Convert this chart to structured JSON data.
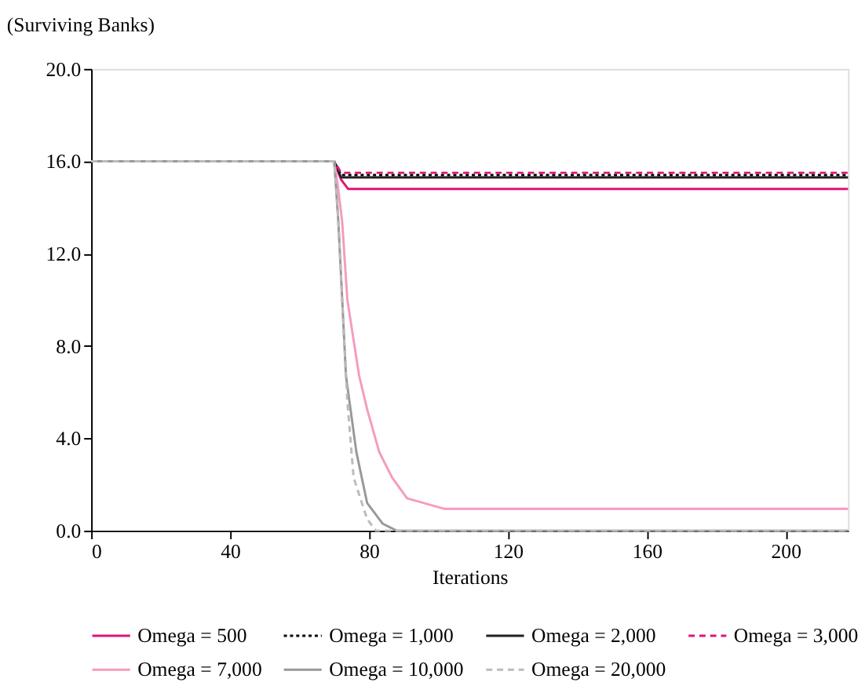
{
  "chart_data": {
    "type": "line",
    "ylabel": "(Surviving Banks)",
    "xlabel": "Iterations",
    "xlim": [
      0,
      218
    ],
    "ylim": [
      0,
      20
    ],
    "xticks": [
      0,
      40,
      80,
      120,
      160,
      200
    ],
    "yticks": [
      {
        "value": 0,
        "label": "0.0"
      },
      {
        "value": 4,
        "label": "4.0"
      },
      {
        "value": 8,
        "label": "8.0"
      },
      {
        "value": 12,
        "label": "12.0"
      },
      {
        "value": 16,
        "label": "16.0"
      },
      {
        "value": 20,
        "label": "20.0"
      }
    ],
    "grid": false,
    "legend": "bottom",
    "marker": "none",
    "series": [
      {
        "name": "Omega = 500",
        "color": "#e0157a",
        "line_style": "solid",
        "x": [
          0,
          70,
          72,
          74,
          218
        ],
        "values": [
          16,
          16,
          15.2,
          14.8,
          14.8
        ]
      },
      {
        "name": "Omega = 1,000",
        "color": "#000000",
        "line_style": "dotted",
        "x": [
          0,
          70,
          72,
          218
        ],
        "values": [
          16,
          16,
          15.4,
          15.4
        ]
      },
      {
        "name": "Omega = 2,000",
        "color": "#231f20",
        "line_style": "solid",
        "x": [
          0,
          70,
          72,
          218
        ],
        "values": [
          16,
          16,
          15.3,
          15.3
        ]
      },
      {
        "name": "Omega = 3,000",
        "color": "#e0157a",
        "line_style": "dashed",
        "x": [
          0,
          70,
          72,
          218
        ],
        "values": [
          16,
          16,
          15.5,
          15.5
        ]
      },
      {
        "name": "Omega = 7,000",
        "color": "#f59bc0",
        "line_style": "solid",
        "x": [
          0,
          70,
          71,
          72.3,
          73.8,
          77.2,
          79.6,
          83,
          86.7,
          91,
          101.6,
          218
        ],
        "values": [
          16,
          16,
          15,
          13.4,
          10,
          6.7,
          5.2,
          3.4,
          2.3,
          1.4,
          0.95,
          0.95
        ]
      },
      {
        "name": "Omega = 10,000",
        "color": "#999999",
        "line_style": "solid",
        "x": [
          0,
          70,
          71.2,
          73.4,
          76.4,
          79.5,
          84,
          88,
          218
        ],
        "values": [
          16,
          16,
          13.4,
          6.7,
          3.4,
          1.2,
          0.3,
          0,
          0
        ]
      },
      {
        "name": "Omega = 20,000",
        "color": "#bbbbbb",
        "line_style": "dashed",
        "x": [
          0,
          70,
          71,
          72.3,
          73.8,
          75.6,
          79.5,
          82,
          218
        ],
        "values": [
          16,
          16,
          14,
          10,
          5.6,
          2.3,
          0.5,
          0,
          0
        ]
      }
    ]
  }
}
